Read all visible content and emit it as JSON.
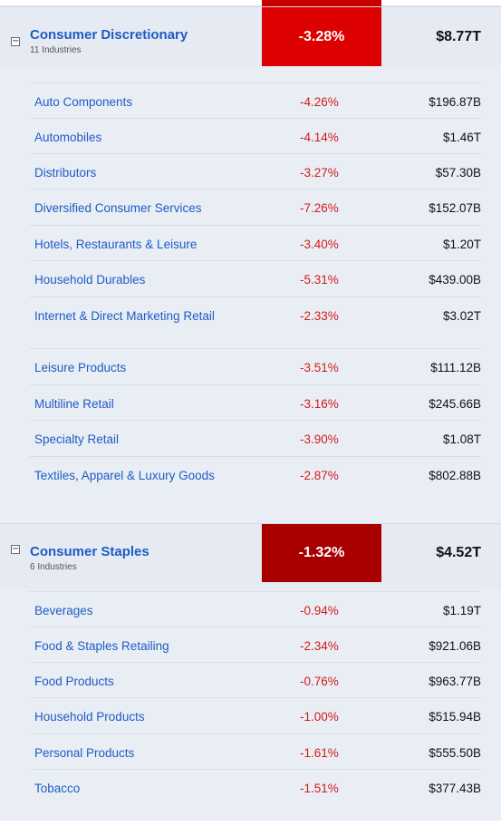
{
  "colors": {
    "link": "#1f5bc4",
    "negative": "#d41a1a",
    "discretionary_pct_bg": "#dd0000",
    "staples_pct_bg": "#a80000",
    "panel_bg": "#e9eef5"
  },
  "sectors": [
    {
      "name": "Consumer Discretionary",
      "sub": "11 Industries",
      "pct": "-3.28%",
      "cap": "$8.77T",
      "toggle": "−",
      "industries": [
        {
          "name": "Auto Components",
          "pct": "-4.26%",
          "cap": "$196.87B"
        },
        {
          "name": "Automobiles",
          "pct": "-4.14%",
          "cap": "$1.46T"
        },
        {
          "name": "Distributors",
          "pct": "-3.27%",
          "cap": "$57.30B"
        },
        {
          "name": "Diversified Consumer Services",
          "pct": "-7.26%",
          "cap": "$152.07B"
        },
        {
          "name": "Hotels, Restaurants & Leisure",
          "pct": "-3.40%",
          "cap": "$1.20T"
        },
        {
          "name": "Household Durables",
          "pct": "-5.31%",
          "cap": "$439.00B"
        },
        {
          "name": "Internet & Direct Marketing Retail",
          "pct": "-2.33%",
          "cap": "$3.02T"
        },
        {
          "name": "Leisure Products",
          "pct": "-3.51%",
          "cap": "$111.12B"
        },
        {
          "name": "Multiline Retail",
          "pct": "-3.16%",
          "cap": "$245.66B"
        },
        {
          "name": "Specialty Retail",
          "pct": "-3.90%",
          "cap": "$1.08T"
        },
        {
          "name": "Textiles, Apparel & Luxury Goods",
          "pct": "-2.87%",
          "cap": "$802.88B"
        }
      ]
    },
    {
      "name": "Consumer Staples",
      "sub": "6 Industries",
      "pct": "-1.32%",
      "cap": "$4.52T",
      "toggle": "−",
      "industries": [
        {
          "name": "Beverages",
          "pct": "-0.94%",
          "cap": "$1.19T"
        },
        {
          "name": "Food & Staples Retailing",
          "pct": "-2.34%",
          "cap": "$921.06B"
        },
        {
          "name": "Food Products",
          "pct": "-0.76%",
          "cap": "$963.77B"
        },
        {
          "name": "Household Products",
          "pct": "-1.00%",
          "cap": "$515.94B"
        },
        {
          "name": "Personal Products",
          "pct": "-1.61%",
          "cap": "$555.50B"
        },
        {
          "name": "Tobacco",
          "pct": "-1.51%",
          "cap": "$377.43B"
        }
      ]
    }
  ]
}
